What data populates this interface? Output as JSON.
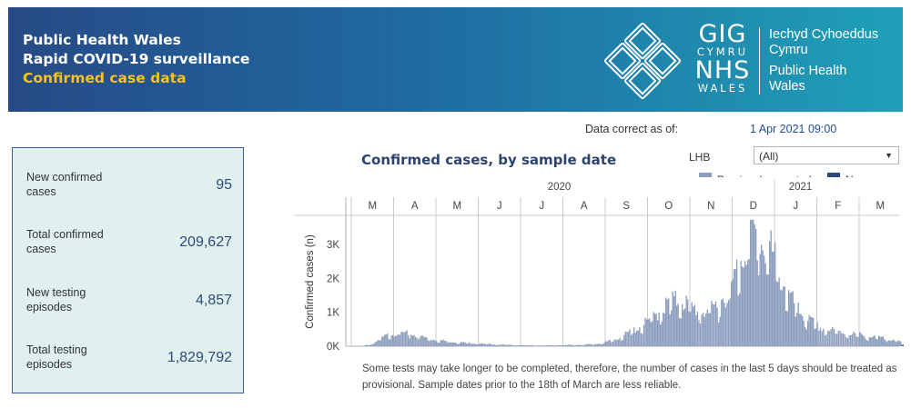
{
  "header": {
    "line1": "Public Health Wales",
    "line2": "Rapid COVID-19 surveillance",
    "line3": "Confirmed case data",
    "logo_gig": "GIG",
    "logo_cymru": "CYMRU",
    "logo_nhs": "NHS",
    "logo_wales": "WALES",
    "org_welsh_1": "Iechyd Cyhoeddus",
    "org_welsh_2": "Cymru",
    "org_english_1": "Public Health",
    "org_english_2": "Wales"
  },
  "as_of": {
    "label": "Data correct as of:",
    "value": "1 Apr 2021 09:00"
  },
  "kpis": [
    {
      "label": "New confirmed cases",
      "value": "95"
    },
    {
      "label": "Total confirmed cases",
      "value": "209,627"
    },
    {
      "label": "New testing episodes",
      "value": "4,857"
    },
    {
      "label": "Total testing episodes",
      "value": "1,829,792"
    }
  ],
  "filter": {
    "label": "LHB",
    "selected": "(All)"
  },
  "legend": {
    "previous": "Previously reported",
    "new": "New cases"
  },
  "note": "Some tests may take longer to be completed, therefore, the number of cases in the last 5 days should be treated as provisional. Sample dates prior to the 18th of March are less reliable.",
  "colors": {
    "previous": "#8c9dbd",
    "new": "#2b4a7c",
    "banner_start": "#274a86",
    "banner_end": "#1fa0b8",
    "highlight": "#f6c21c"
  },
  "chart_data": {
    "type": "bar",
    "title": "Confirmed cases, by sample date",
    "ylabel": "Confirmed cases (n)",
    "xlabel": "",
    "ylim": [
      0,
      3800
    ],
    "y_ticks": [
      "0K",
      "1K",
      "2K",
      "3K"
    ],
    "year_labels": [
      "2020",
      "2021"
    ],
    "month_labels": [
      "M",
      "A",
      "M",
      "J",
      "J",
      "A",
      "S",
      "O",
      "N",
      "D",
      "J",
      "F",
      "M"
    ],
    "legend_position": "top-right",
    "series": [
      {
        "name": "Previously reported"
      },
      {
        "name": "New cases"
      }
    ],
    "weekly_approx": {
      "week_starts": [
        "2020-03-02",
        "2020-03-09",
        "2020-03-16",
        "2020-03-23",
        "2020-03-30",
        "2020-04-06",
        "2020-04-13",
        "2020-04-20",
        "2020-04-27",
        "2020-05-04",
        "2020-05-11",
        "2020-05-18",
        "2020-05-25",
        "2020-06-01",
        "2020-06-08",
        "2020-06-15",
        "2020-06-22",
        "2020-06-29",
        "2020-07-06",
        "2020-07-13",
        "2020-07-20",
        "2020-07-27",
        "2020-08-03",
        "2020-08-10",
        "2020-08-17",
        "2020-08-24",
        "2020-08-31",
        "2020-09-07",
        "2020-09-14",
        "2020-09-21",
        "2020-09-28",
        "2020-10-05",
        "2020-10-12",
        "2020-10-19",
        "2020-10-26",
        "2020-11-02",
        "2020-11-09",
        "2020-11-16",
        "2020-11-23",
        "2020-11-30",
        "2020-12-07",
        "2020-12-14",
        "2020-12-21",
        "2020-12-28",
        "2021-01-04",
        "2021-01-11",
        "2021-01-18",
        "2021-01-25",
        "2021-02-01",
        "2021-02-08",
        "2021-02-15",
        "2021-02-22",
        "2021-03-01",
        "2021-03-08",
        "2021-03-15",
        "2021-03-22",
        "2021-03-29"
      ],
      "values": [
        3,
        10,
        60,
        210,
        330,
        340,
        310,
        250,
        190,
        150,
        120,
        100,
        85,
        70,
        55,
        45,
        35,
        28,
        22,
        18,
        20,
        25,
        30,
        35,
        40,
        55,
        90,
        170,
        280,
        420,
        560,
        760,
        1000,
        1150,
        1200,
        1000,
        900,
        950,
        1200,
        1500,
        2300,
        3000,
        2700,
        2500,
        1900,
        1300,
        900,
        700,
        500,
        420,
        380,
        330,
        300,
        240,
        220,
        200,
        120
      ]
    }
  }
}
